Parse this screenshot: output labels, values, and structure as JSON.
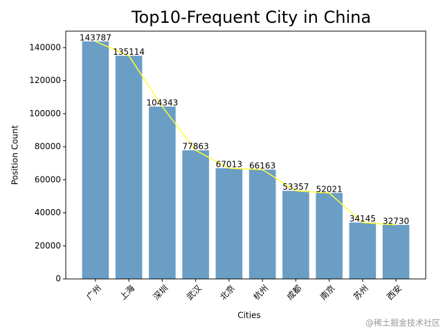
{
  "chart_data": {
    "type": "bar",
    "title": "Top10-Frequent City in China",
    "x_label": "Cities",
    "y_label": "Position Count",
    "categories": [
      "广州",
      "上海",
      "深圳",
      "武汉",
      "北京",
      "杭州",
      "成都",
      "南京",
      "苏州",
      "西安"
    ],
    "values": [
      143787,
      135114,
      104343,
      77863,
      67013,
      66163,
      53357,
      52021,
      34145,
      32730
    ],
    "color": "#6a9ec5",
    "line_color": "#ffff33",
    "value_labels_shown": true,
    "ylim": [
      0,
      150000
    ],
    "yticks": [
      0,
      20000,
      40000,
      60000,
      80000,
      100000,
      120000,
      140000
    ],
    "watermark": "@稀土掘金技术社区"
  }
}
